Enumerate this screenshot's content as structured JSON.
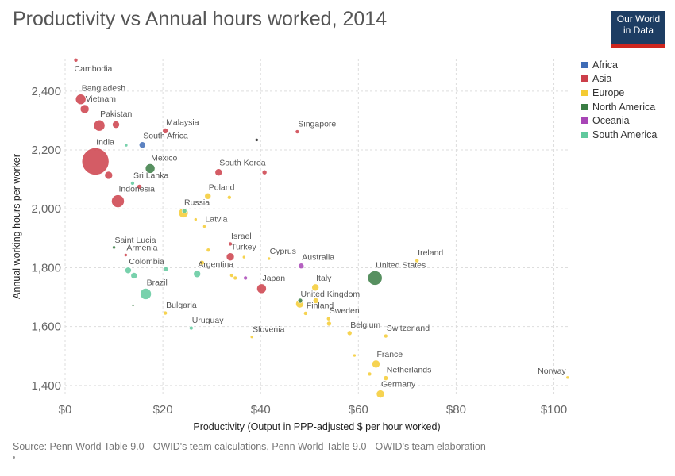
{
  "header": {
    "title": "Productivity vs Annual hours worked, 2014",
    "logo_line1": "Our World",
    "logo_line2": "in Data"
  },
  "footer": {
    "source": "Source: Penn World Table 9.0 - OWID's team calculations, Penn World Table 9.0 - OWID's team elaboration"
  },
  "colors": {
    "Africa": "#3f6cb6",
    "Asia": "#cc3f4a",
    "Europe": "#f4cb33",
    "North America": "#3a7d44",
    "Oceania": "#a845b6",
    "South America": "#60c99d",
    "Unlabeled": "#222222"
  },
  "chart_data": {
    "type": "scatter",
    "title": "Productivity vs Annual hours worked, 2014",
    "xlabel": "Productivity (Output in PPP-adjusted $ per hour worked)",
    "ylabel": "Annual working hours per worker",
    "xlim": [
      0,
      103
    ],
    "ylim": [
      1370,
      2510
    ],
    "x_ticks": [
      0,
      20,
      40,
      60,
      80,
      100
    ],
    "x_tick_labels": [
      "$0",
      "$20",
      "$40",
      "$60",
      "$80",
      "$100"
    ],
    "y_ticks": [
      1400,
      1600,
      1800,
      2000,
      2200,
      2400
    ],
    "y_tick_labels": [
      "1,400",
      "1,600",
      "1,800",
      "2,000",
      "2,200",
      "2,400"
    ],
    "grid": true,
    "legend_position": "top-right",
    "legend": [
      "Africa",
      "Asia",
      "Europe",
      "North America",
      "Oceania",
      "South America"
    ],
    "points": [
      {
        "label": "Cambodia",
        "x": 2.2,
        "y": 2505,
        "r": 2.5,
        "region": "Asia"
      },
      {
        "label": "Bangladesh",
        "x": 3.2,
        "y": 2372,
        "r": 6.5,
        "region": "Asia"
      },
      {
        "label": "Vietnam",
        "x": 4.0,
        "y": 2339,
        "r": 5.5,
        "region": "Asia"
      },
      {
        "label": "Pakistan",
        "x": 7.0,
        "y": 2283,
        "r": 7,
        "region": "Asia"
      },
      {
        "label": "",
        "x": 10.4,
        "y": 2286,
        "r": 4.5,
        "region": "Asia"
      },
      {
        "label": "Malaysia",
        "x": 20.5,
        "y": 2265,
        "r": 3.5,
        "region": "Asia"
      },
      {
        "label": "Singapore",
        "x": 47.5,
        "y": 2262,
        "r": 2.5,
        "region": "Asia"
      },
      {
        "label": "South Africa",
        "x": 15.8,
        "y": 2217,
        "r": 4,
        "region": "Africa"
      },
      {
        "label": "",
        "x": 12.5,
        "y": 2216,
        "r": 2,
        "region": "South America"
      },
      {
        "label": "",
        "x": 39.2,
        "y": 2234,
        "r": 2,
        "region": "Unlabeled"
      },
      {
        "label": "India",
        "x": 6.2,
        "y": 2161,
        "r": 17,
        "region": "Asia"
      },
      {
        "label": "",
        "x": 8.9,
        "y": 2114,
        "r": 5,
        "region": "Asia"
      },
      {
        "label": "Mexico",
        "x": 17.4,
        "y": 2137,
        "r": 6,
        "region": "North America"
      },
      {
        "label": "South Korea",
        "x": 31.4,
        "y": 2124,
        "r": 4.5,
        "region": "Asia"
      },
      {
        "label": "",
        "x": 40.8,
        "y": 2124,
        "r": 3,
        "region": "Asia"
      },
      {
        "label": "Sri Lanka",
        "x": 13.8,
        "y": 2087,
        "r": 2.5,
        "region": "South America"
      },
      {
        "label": "",
        "x": 15.2,
        "y": 2075,
        "r": 3,
        "region": "Asia"
      },
      {
        "label": "Indonesia",
        "x": 10.8,
        "y": 2026,
        "r": 8,
        "region": "Asia"
      },
      {
        "label": "Poland",
        "x": 29.2,
        "y": 2043,
        "r": 4,
        "region": "Europe"
      },
      {
        "label": "",
        "x": 33.6,
        "y": 2039,
        "r": 2.5,
        "region": "Europe"
      },
      {
        "label": "Russia",
        "x": 24.2,
        "y": 1986,
        "r": 6,
        "region": "Europe"
      },
      {
        "label": "",
        "x": 24.4,
        "y": 1993,
        "r": 3,
        "region": "South America"
      },
      {
        "label": "",
        "x": 26.7,
        "y": 1964,
        "r": 2,
        "region": "Europe"
      },
      {
        "label": "Latvia",
        "x": 28.5,
        "y": 1940,
        "r": 2,
        "region": "Europe"
      },
      {
        "label": "Saint Lucia",
        "x": 10.0,
        "y": 1869,
        "r": 2,
        "region": "North America"
      },
      {
        "label": "Armenia",
        "x": 12.4,
        "y": 1843,
        "r": 2,
        "region": "Asia"
      },
      {
        "label": "",
        "x": 29.3,
        "y": 1860,
        "r": 2.5,
        "region": "Europe"
      },
      {
        "label": "Israel",
        "x": 33.8,
        "y": 1881,
        "r": 2.5,
        "region": "Asia"
      },
      {
        "label": "Turkey",
        "x": 33.8,
        "y": 1837,
        "r": 5,
        "region": "Asia"
      },
      {
        "label": "",
        "x": 36.6,
        "y": 1836,
        "r": 2,
        "region": "Europe"
      },
      {
        "label": "Cyprus",
        "x": 41.7,
        "y": 1831,
        "r": 2,
        "region": "Europe"
      },
      {
        "label": "Ireland",
        "x": 72.0,
        "y": 1824,
        "r": 2.5,
        "region": "Europe"
      },
      {
        "label": "",
        "x": 28.0,
        "y": 1817,
        "r": 3,
        "region": "Europe"
      },
      {
        "label": "Australia",
        "x": 48.3,
        "y": 1806,
        "r": 3.5,
        "region": "Oceania"
      },
      {
        "label": "Colombia",
        "x": 12.9,
        "y": 1791,
        "r": 4,
        "region": "South America"
      },
      {
        "label": "",
        "x": 20.6,
        "y": 1795,
        "r": 3,
        "region": "South America"
      },
      {
        "label": "Argentina",
        "x": 27.0,
        "y": 1779,
        "r": 4.5,
        "region": "South America"
      },
      {
        "label": "",
        "x": 14.1,
        "y": 1773,
        "r": 4,
        "region": "South America"
      },
      {
        "label": "",
        "x": 34.1,
        "y": 1774,
        "r": 2.5,
        "region": "Europe"
      },
      {
        "label": "",
        "x": 34.8,
        "y": 1765,
        "r": 2.5,
        "region": "Europe"
      },
      {
        "label": "",
        "x": 36.9,
        "y": 1765,
        "r": 2.5,
        "region": "Oceania"
      },
      {
        "label": "United States",
        "x": 63.4,
        "y": 1765,
        "r": 9,
        "region": "North America"
      },
      {
        "label": "Japan",
        "x": 40.2,
        "y": 1729,
        "r": 6,
        "region": "Asia"
      },
      {
        "label": "Italy",
        "x": 51.2,
        "y": 1733,
        "r": 4.5,
        "region": "Europe"
      },
      {
        "label": "Brazil",
        "x": 16.5,
        "y": 1711,
        "r": 7,
        "region": "South America"
      },
      {
        "label": "United Kingdom",
        "x": 48.0,
        "y": 1677,
        "r": 5,
        "region": "Europe"
      },
      {
        "label": "",
        "x": 48.1,
        "y": 1688,
        "r": 3,
        "region": "North America"
      },
      {
        "label": "",
        "x": 51.3,
        "y": 1688,
        "r": 3.5,
        "region": "Europe"
      },
      {
        "label": "",
        "x": 13.9,
        "y": 1672,
        "r": 1.5,
        "region": "North America"
      },
      {
        "label": "Bulgaria",
        "x": 20.5,
        "y": 1646,
        "r": 2.5,
        "region": "Europe"
      },
      {
        "label": "Finland",
        "x": 49.2,
        "y": 1645,
        "r": 2.5,
        "region": "Europe"
      },
      {
        "label": "Sweden",
        "x": 53.9,
        "y": 1627,
        "r": 2.5,
        "region": "Europe"
      },
      {
        "label": "",
        "x": 54.0,
        "y": 1610,
        "r": 3,
        "region": "Europe"
      },
      {
        "label": "Uruguay",
        "x": 25.8,
        "y": 1595,
        "r": 2.5,
        "region": "South America"
      },
      {
        "label": "Slovenia",
        "x": 38.2,
        "y": 1565,
        "r": 2,
        "region": "Europe"
      },
      {
        "label": "Belgium",
        "x": 58.2,
        "y": 1578,
        "r": 3,
        "region": "Europe"
      },
      {
        "label": "Switzerland",
        "x": 65.6,
        "y": 1568,
        "r": 2.5,
        "region": "Europe"
      },
      {
        "label": "",
        "x": 59.2,
        "y": 1502,
        "r": 2,
        "region": "Europe"
      },
      {
        "label": "France",
        "x": 63.6,
        "y": 1473,
        "r": 5,
        "region": "Europe"
      },
      {
        "label": "",
        "x": 62.3,
        "y": 1439,
        "r": 2.5,
        "region": "Europe"
      },
      {
        "label": "Netherlands",
        "x": 65.6,
        "y": 1425,
        "r": 3,
        "region": "Europe"
      },
      {
        "label": "Germany",
        "x": 64.5,
        "y": 1371,
        "r": 5,
        "region": "Europe"
      },
      {
        "label": "Norway",
        "x": 102.8,
        "y": 1427,
        "r": 2,
        "region": "Europe"
      }
    ]
  }
}
